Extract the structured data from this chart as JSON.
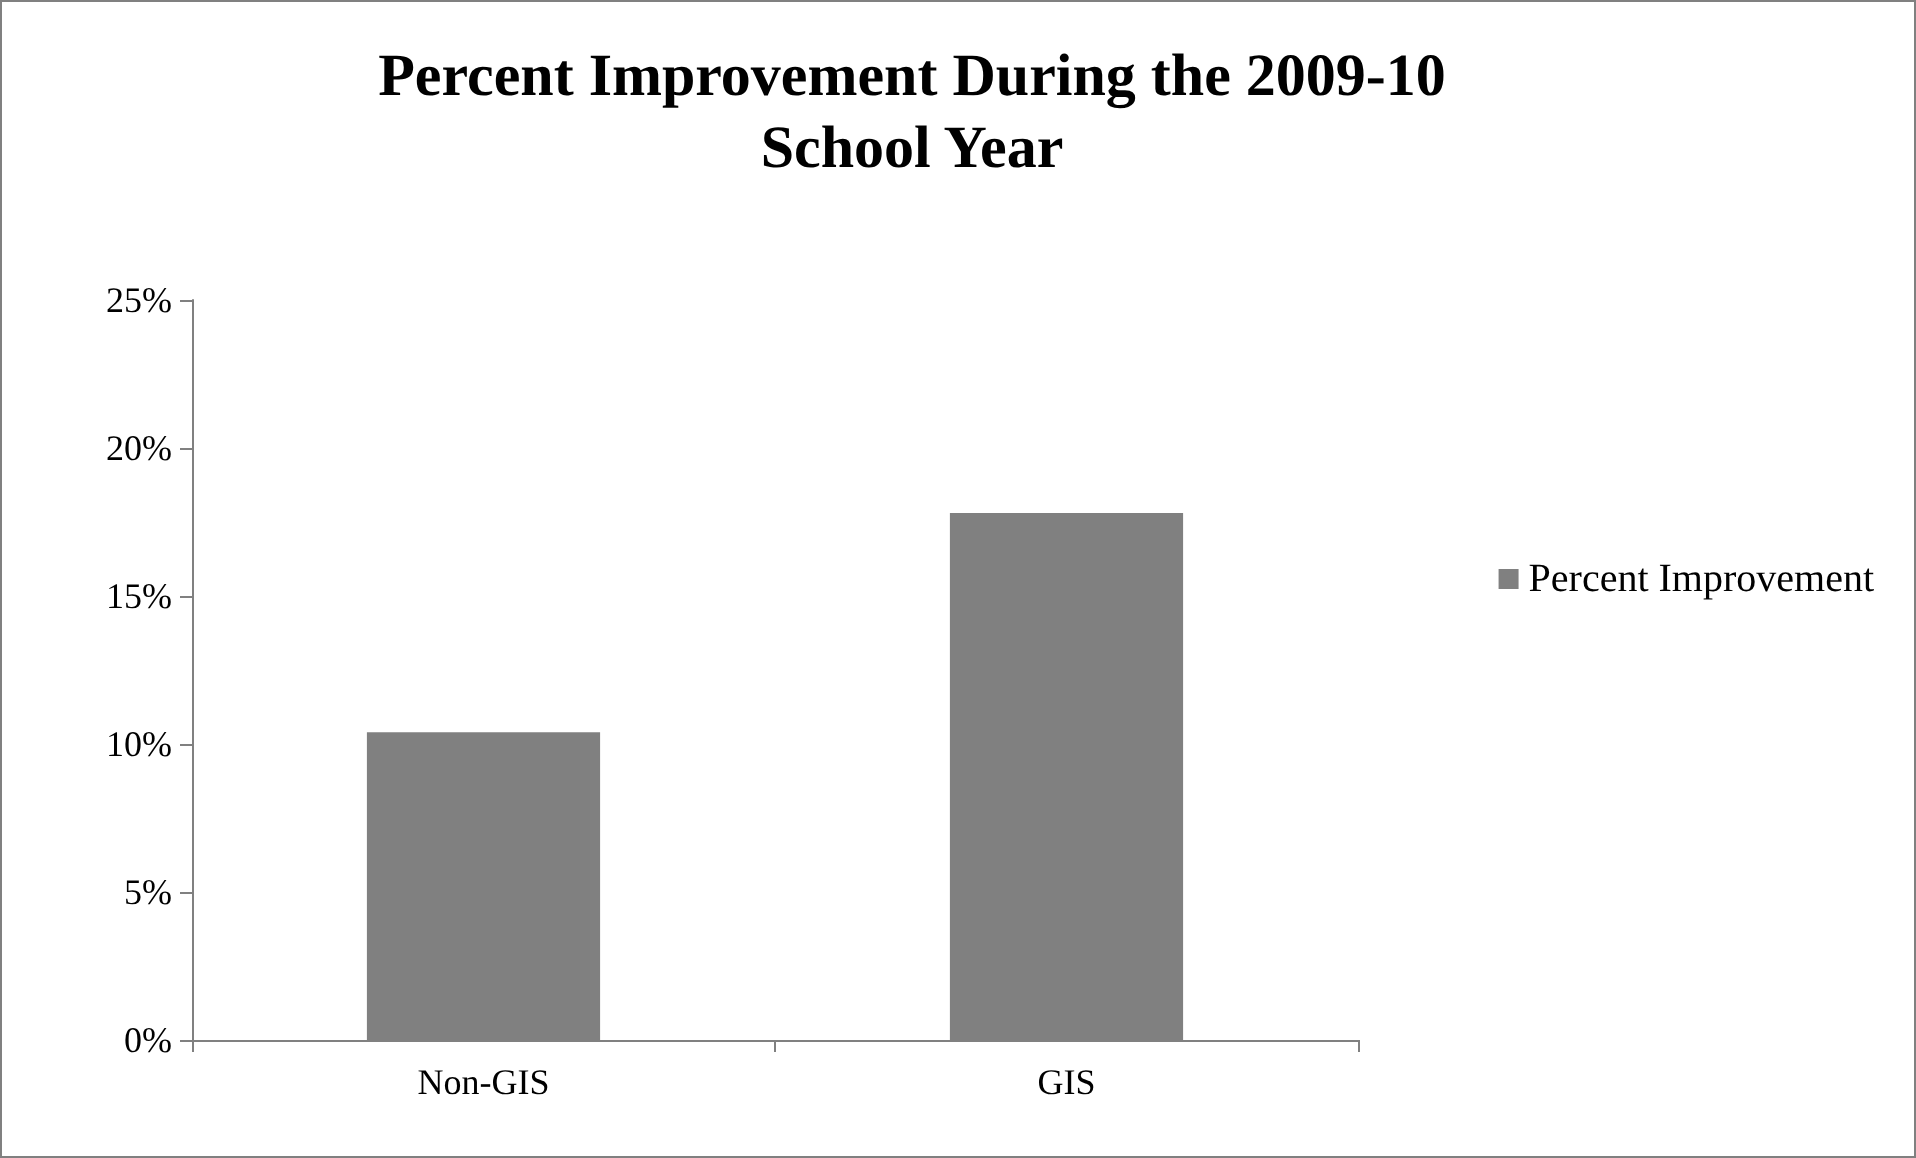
{
  "chart_data": {
    "type": "bar",
    "title": "Percent Improvement During the 2009-10\nSchool Year",
    "categories": [
      "Non-GIS",
      "GIS"
    ],
    "series": [
      {
        "name": "Percent Improvement",
        "color": "#808080",
        "values": [
          10.4,
          17.8
        ]
      }
    ],
    "ylim": [
      0,
      25
    ],
    "yticks": [
      {
        "value": 0,
        "label": "0%"
      },
      {
        "value": 5,
        "label": "5%"
      },
      {
        "value": 10,
        "label": "10%"
      },
      {
        "value": 15,
        "label": "15%"
      },
      {
        "value": 20,
        "label": "20%"
      },
      {
        "value": 25,
        "label": "25%"
      }
    ],
    "grid": false,
    "legend": "right"
  }
}
